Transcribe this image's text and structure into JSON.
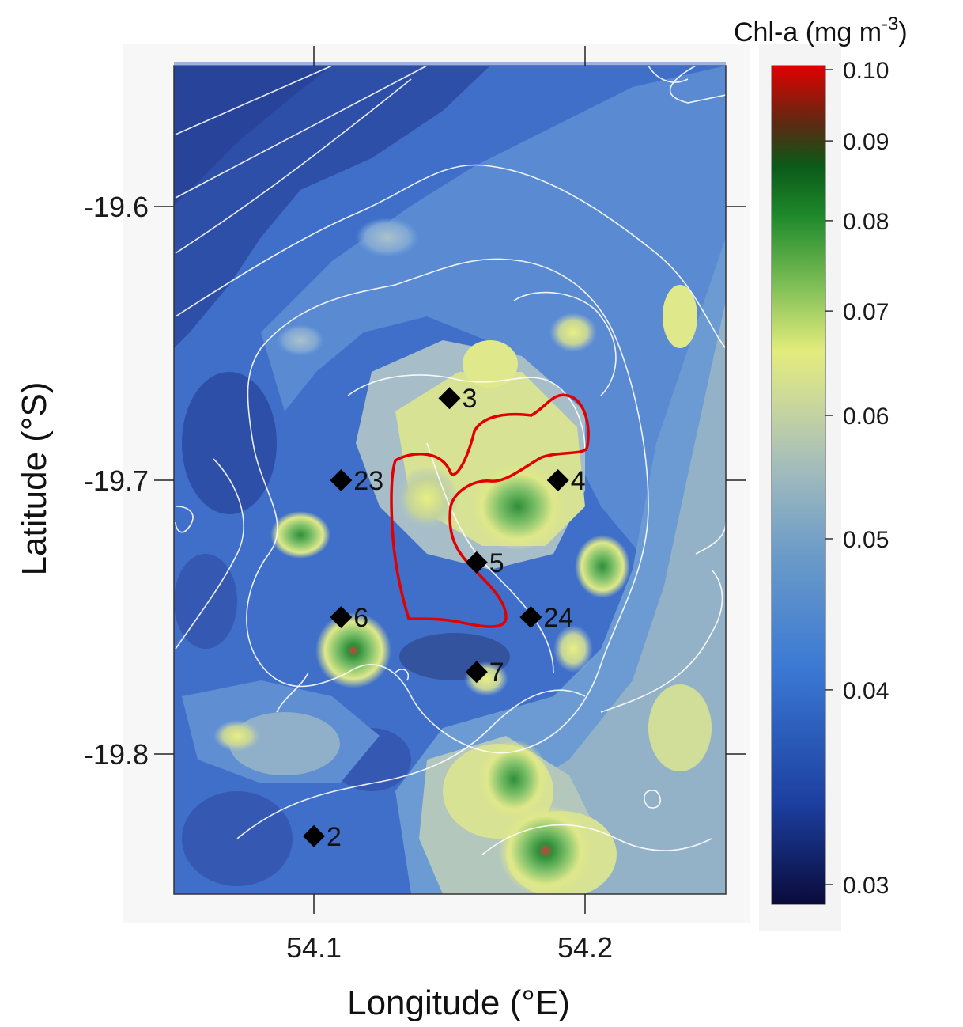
{
  "figure": {
    "x_axis_title": "Longitude (°E)",
    "y_axis_title": "Latitude (°S)",
    "x_ticks": [
      "54.1",
      "54.2"
    ],
    "y_ticks": [
      "-19.6",
      "-19.7",
      "-19.8"
    ]
  },
  "colorbar": {
    "title_main": "Chl-a (mg m",
    "title_sup": "-3",
    "title_close": ")",
    "ticks": [
      "0.10",
      "0.09",
      "0.08",
      "0.07",
      "0.06",
      "0.05",
      "0.04",
      "0.03"
    ],
    "values": [
      0.1,
      0.09,
      0.08,
      0.07,
      0.06,
      0.05,
      0.04,
      0.03
    ],
    "scale": "log",
    "colors": [
      "#0a0a3a",
      "#1c3fa0",
      "#3a78d4",
      "#7fa6c8",
      "#c7d28a",
      "#e5ec7a",
      "#4aa33f",
      "#0b6a1e",
      "#5b2a12",
      "#e00000"
    ]
  },
  "stations": [
    {
      "id": "3",
      "label": "3",
      "lon": 54.15,
      "lat": -19.67
    },
    {
      "id": "23",
      "label": "23",
      "lon": 54.11,
      "lat": -19.7
    },
    {
      "id": "4",
      "label": "4",
      "lon": 54.19,
      "lat": -19.7
    },
    {
      "id": "5",
      "label": "5",
      "lon": 54.16,
      "lat": -19.73
    },
    {
      "id": "6",
      "label": "6",
      "lon": 54.11,
      "lat": -19.75
    },
    {
      "id": "24",
      "label": "24",
      "lon": 54.18,
      "lat": -19.75
    },
    {
      "id": "7",
      "label": "7",
      "lon": 54.16,
      "lat": -19.77
    },
    {
      "id": "2",
      "label": "2",
      "lon": 54.1,
      "lat": -19.83
    }
  ],
  "map_colors": {
    "background": "#3f6fc9",
    "deep": "#2e4fa8",
    "mid": "#6f9fd8",
    "light": "#a6bfcf",
    "yellow": "#dfe88a",
    "green": "#7fc06a",
    "dark_green": "#2f8f3a",
    "peak": "#d73a3a",
    "contour": "#ffffff",
    "eddy_outline": "#e00000"
  }
}
